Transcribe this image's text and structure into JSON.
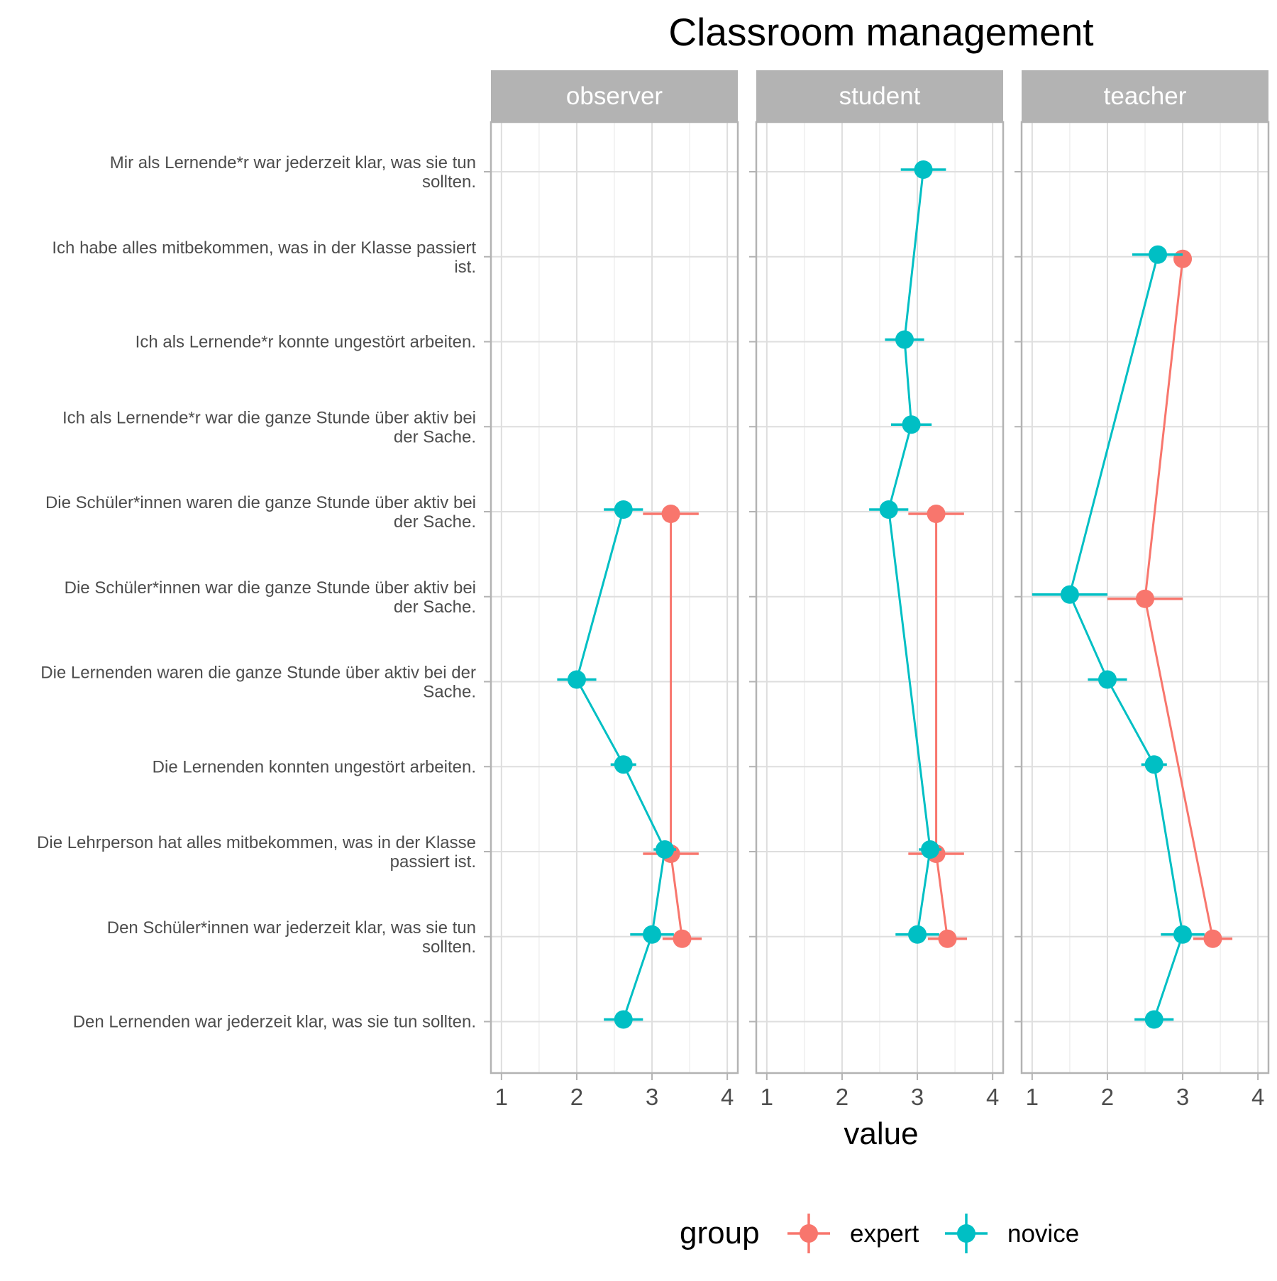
{
  "chart_data": {
    "type": "scatter",
    "title": "Classroom management",
    "xlabel": "value",
    "ylabel": "",
    "xlim": [
      0.86,
      4.14
    ],
    "x_ticks": [
      1,
      2,
      3,
      4
    ],
    "panels": [
      "observer",
      "student",
      "teacher"
    ],
    "items": [
      "Mir als Lernende*r war jederzeit klar, was sie tun\nsollten.",
      "Ich habe alles mitbekommen, was in der Klasse passiert\nist.",
      "Ich als Lernende*r konnte ungestört arbeiten.",
      "Ich als Lernende*r war die ganze Stunde über aktiv bei\nder Sache.",
      "Die Schüler*innen waren die ganze Stunde über aktiv bei\nder Sache.",
      "Die Schüler*innen war die ganze Stunde über aktiv bei\nder Sache.",
      "Die Lernenden waren die ganze Stunde über aktiv bei der\nSache.",
      "Die Lernenden konnten ungestört arbeiten.",
      "Die Lehrperson hat alles mitbekommen, was in der Klasse\npassiert ist.",
      "Den Schüler*innen war jederzeit klar, was sie tun\nsollten.",
      "Den Lernenden war jederzeit klar, was sie tun sollten."
    ],
    "legend": {
      "title": "group",
      "position": "bottom",
      "entries": [
        {
          "name": "expert",
          "color": "#F8766D"
        },
        {
          "name": "novice",
          "color": "#00BFC4"
        }
      ]
    },
    "series": [
      {
        "name": "expert",
        "color": "#F8766D",
        "panels": {
          "observer": [
            {
              "item": 4,
              "value": 3.25,
              "lo": 2.88,
              "hi": 3.62
            },
            {
              "item": 8,
              "value": 3.25,
              "lo": 2.88,
              "hi": 3.62
            },
            {
              "item": 9,
              "value": 3.4,
              "lo": 3.14,
              "hi": 3.66
            }
          ],
          "student": [
            {
              "item": 4,
              "value": 3.25,
              "lo": 2.88,
              "hi": 3.62
            },
            {
              "item": 8,
              "value": 3.25,
              "lo": 2.88,
              "hi": 3.62
            },
            {
              "item": 9,
              "value": 3.4,
              "lo": 3.14,
              "hi": 3.66
            }
          ],
          "teacher": [
            {
              "item": 1,
              "value": 3.0,
              "lo": 3.0,
              "hi": 3.0
            },
            {
              "item": 5,
              "value": 2.5,
              "lo": 2.0,
              "hi": 3.0
            },
            {
              "item": 9,
              "value": 3.4,
              "lo": 3.14,
              "hi": 3.66
            }
          ]
        }
      },
      {
        "name": "novice",
        "color": "#00BFC4",
        "panels": {
          "observer": [
            {
              "item": 4,
              "value": 2.62,
              "lo": 2.36,
              "hi": 2.88
            },
            {
              "item": 6,
              "value": 2.0,
              "lo": 1.74,
              "hi": 2.26
            },
            {
              "item": 7,
              "value": 2.62,
              "lo": 2.45,
              "hi": 2.79
            },
            {
              "item": 8,
              "value": 3.17,
              "lo": 3.02,
              "hi": 3.32
            },
            {
              "item": 9,
              "value": 3.0,
              "lo": 2.71,
              "hi": 3.29
            },
            {
              "item": 10,
              "value": 2.62,
              "lo": 2.36,
              "hi": 2.88
            }
          ],
          "student": [
            {
              "item": 0,
              "value": 3.08,
              "lo": 2.78,
              "hi": 3.38
            },
            {
              "item": 2,
              "value": 2.83,
              "lo": 2.57,
              "hi": 3.09
            },
            {
              "item": 3,
              "value": 2.92,
              "lo": 2.65,
              "hi": 3.19
            },
            {
              "item": 4,
              "value": 2.62,
              "lo": 2.36,
              "hi": 2.88
            },
            {
              "item": 8,
              "value": 3.17,
              "lo": 3.02,
              "hi": 3.32
            },
            {
              "item": 9,
              "value": 3.0,
              "lo": 2.71,
              "hi": 3.29
            }
          ],
          "teacher": [
            {
              "item": 1,
              "value": 2.67,
              "lo": 2.33,
              "hi": 3.0
            },
            {
              "item": 5,
              "value": 1.5,
              "lo": 1.0,
              "hi": 2.0
            },
            {
              "item": 6,
              "value": 2.0,
              "lo": 1.74,
              "hi": 2.26
            },
            {
              "item": 7,
              "value": 2.62,
              "lo": 2.45,
              "hi": 2.79
            },
            {
              "item": 9,
              "value": 3.0,
              "lo": 2.71,
              "hi": 3.29
            },
            {
              "item": 10,
              "value": 2.62,
              "lo": 2.36,
              "hi": 2.88
            }
          ]
        }
      }
    ]
  }
}
